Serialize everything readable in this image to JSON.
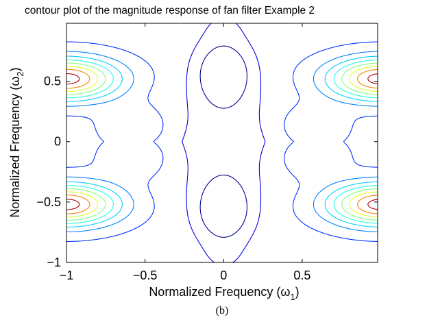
{
  "chart_data": {
    "type": "contour",
    "title": "contour plot of the magnitude response of fan filter Example 2",
    "xlabel": {
      "main": "Normalized Frequency (ω",
      "sub": "1",
      "close": ")"
    },
    "ylabel": {
      "main": "Normalized Frequency (ω",
      "sub": "2",
      "close": ")"
    },
    "xlim": [
      -1,
      0.98
    ],
    "ylim": [
      -1,
      0.98
    ],
    "xticks": [
      {
        "value": -1,
        "label": "−1"
      },
      {
        "value": -0.5,
        "label": "−0.5"
      },
      {
        "value": 0,
        "label": "0"
      },
      {
        "value": 0.5,
        "label": "0.5"
      }
    ],
    "yticks": [
      {
        "value": -1,
        "label": "−1"
      },
      {
        "value": -0.5,
        "label": "−0.5"
      },
      {
        "value": 0,
        "label": "0"
      },
      {
        "value": 0.5,
        "label": "0.5"
      }
    ],
    "grid": false,
    "colormap": "jet",
    "levels": [
      0.05,
      0.15,
      0.25,
      0.35,
      0.45,
      0.55,
      0.65,
      0.75,
      0.85,
      0.95
    ],
    "level_colors": [
      "#00008f",
      "#0000df",
      "#0030ff",
      "#0080ff",
      "#00cfff",
      "#20ffdf",
      "#80ff80",
      "#dfff20",
      "#ff8000",
      "#af0000"
    ]
  },
  "caption": "(b)"
}
